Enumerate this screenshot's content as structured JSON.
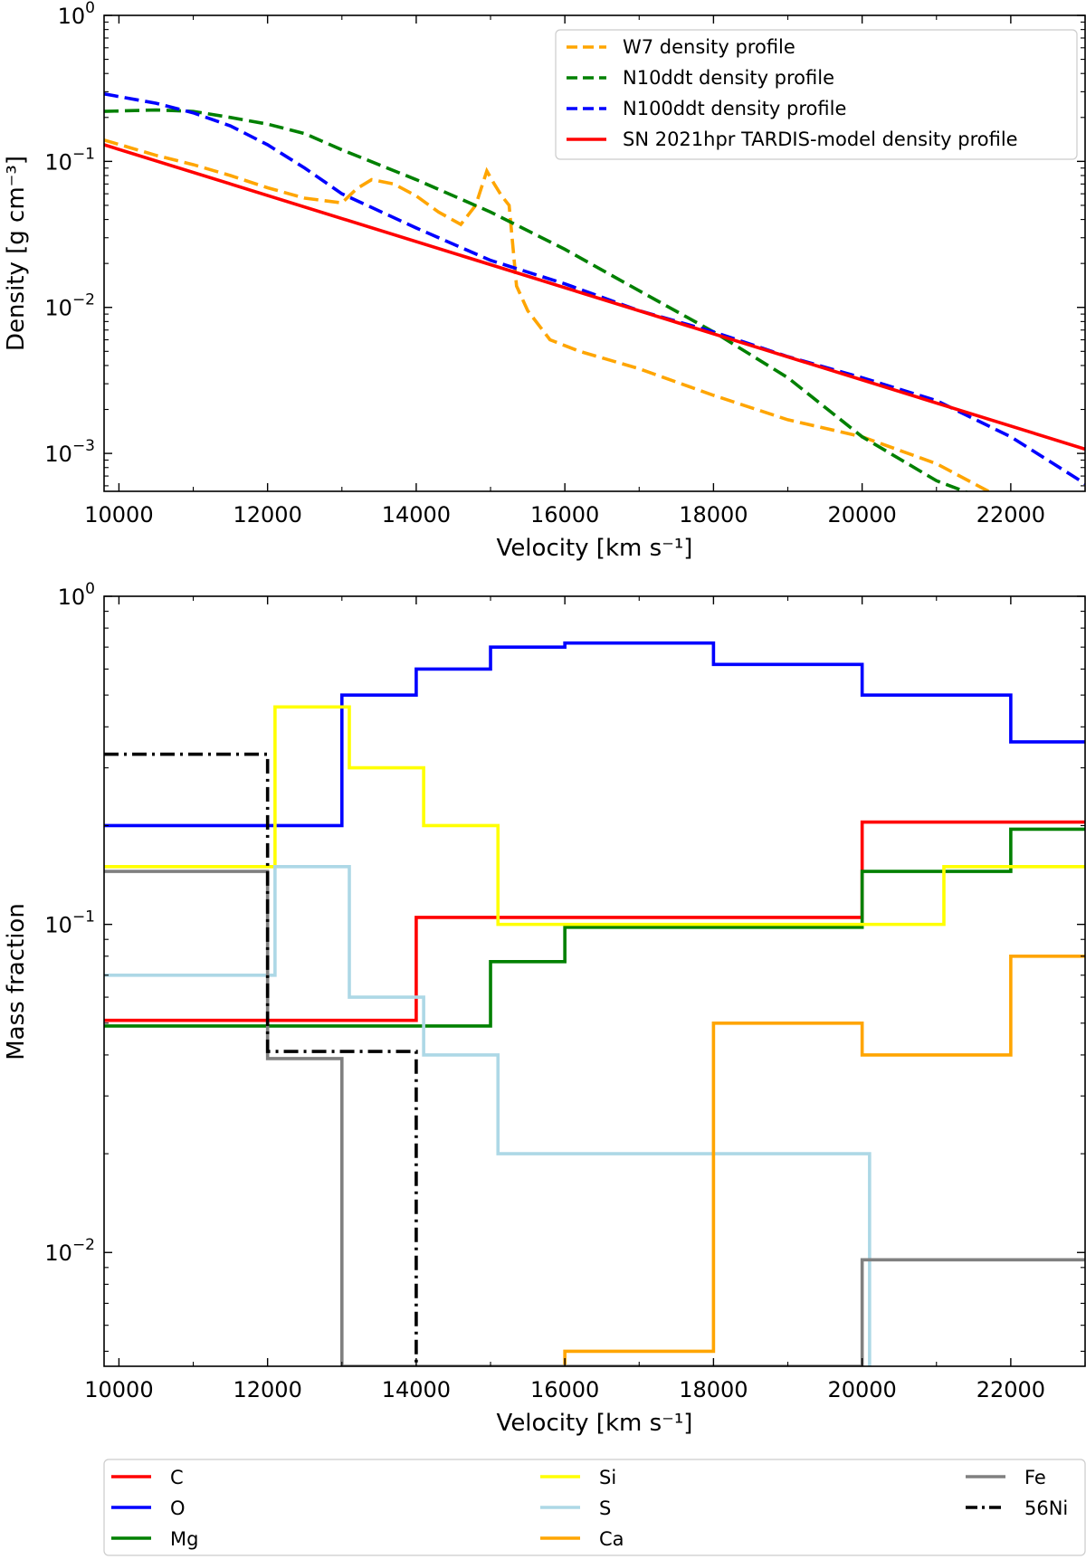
{
  "chart_data": [
    {
      "type": "line",
      "xlabel": "Velocity [km s⁻¹]",
      "ylabel": "Density [g cm⁻³]",
      "xlim": [
        9800,
        23000
      ],
      "ylim": [
        0.00055,
        1.0
      ],
      "yscale": "log",
      "grid": false,
      "legend_position": "top-right",
      "x_ticks": [
        10000,
        12000,
        14000,
        16000,
        18000,
        20000,
        22000
      ],
      "x_tick_labels": [
        "10000",
        "12000",
        "14000",
        "16000",
        "18000",
        "20000",
        "22000"
      ],
      "y_ticks": [
        0.001,
        0.01,
        0.1,
        1
      ],
      "y_tick_labels": [
        {
          "base": "10",
          "exp": "−3"
        },
        {
          "base": "10",
          "exp": "−2"
        },
        {
          "base": "10",
          "exp": "−1"
        },
        {
          "base": "10",
          "exp": "0"
        }
      ],
      "series": [
        {
          "name": "W7 density profile",
          "color": "#FFA500",
          "style": "dashed",
          "x": [
            9800,
            10500,
            11000,
            11500,
            12000,
            12500,
            13000,
            13200,
            13400,
            13700,
            14000,
            14300,
            14600,
            14800,
            14950,
            15050,
            15150,
            15250,
            15350,
            15500,
            15800,
            16200,
            17000,
            18000,
            19000,
            20000,
            21000,
            21700
          ],
          "y": [
            0.14,
            0.11,
            0.095,
            0.08,
            0.066,
            0.056,
            0.052,
            0.065,
            0.075,
            0.07,
            0.058,
            0.045,
            0.037,
            0.05,
            0.086,
            0.07,
            0.058,
            0.05,
            0.014,
            0.0095,
            0.006,
            0.005,
            0.0038,
            0.0025,
            0.0017,
            0.0013,
            0.00085,
            0.00055
          ]
        },
        {
          "name": "N10ddt density profile",
          "color": "#008000",
          "style": "dashed",
          "x": [
            9800,
            10500,
            11000,
            11500,
            12000,
            12500,
            13000,
            14000,
            15000,
            16000,
            17000,
            18000,
            19000,
            20000,
            21000,
            21500
          ],
          "y": [
            0.22,
            0.225,
            0.22,
            0.2,
            0.18,
            0.155,
            0.12,
            0.075,
            0.045,
            0.025,
            0.013,
            0.0068,
            0.0033,
            0.0013,
            0.00065,
            0.00052
          ]
        },
        {
          "name": "N100ddt density profile",
          "color": "#0000FF",
          "style": "dashed",
          "x": [
            9800,
            10500,
            11000,
            11500,
            12000,
            12500,
            13000,
            14000,
            15000,
            16000,
            17000,
            18000,
            19000,
            20000,
            21000,
            22000,
            23000
          ],
          "y": [
            0.29,
            0.25,
            0.215,
            0.175,
            0.13,
            0.09,
            0.06,
            0.035,
            0.021,
            0.0145,
            0.0095,
            0.0068,
            0.0046,
            0.0033,
            0.0023,
            0.0013,
            0.00062
          ]
        },
        {
          "name": "SN 2021hpr TARDIS-model density profile",
          "color": "#FF0000",
          "style": "solid",
          "x": [
            9800,
            23000
          ],
          "y": [
            0.13,
            0.00107
          ]
        }
      ]
    },
    {
      "type": "line",
      "xlabel": "Velocity [km s⁻¹]",
      "ylabel": "Mass fraction",
      "xlim": [
        9800,
        23000
      ],
      "ylim": [
        0.0045,
        1.0
      ],
      "yscale": "log",
      "grid": false,
      "legend_position": "bottom",
      "x_ticks": [
        10000,
        12000,
        14000,
        16000,
        18000,
        20000,
        22000
      ],
      "x_tick_labels": [
        "10000",
        "12000",
        "14000",
        "16000",
        "18000",
        "20000",
        "22000"
      ],
      "y_ticks": [
        0.01,
        0.1,
        1
      ],
      "y_tick_labels": [
        {
          "base": "10",
          "exp": "−2"
        },
        {
          "base": "10",
          "exp": "−1"
        },
        {
          "base": "10",
          "exp": "0"
        }
      ],
      "series": [
        {
          "name": "C",
          "color": "#FF0000",
          "style": "solid",
          "x": [
            9800,
            14000,
            14000,
            20000,
            20000,
            23000
          ],
          "y": [
            0.051,
            0.051,
            0.105,
            0.105,
            0.205,
            0.205
          ]
        },
        {
          "name": "O",
          "color": "#0000FF",
          "style": "solid",
          "x": [
            9800,
            13000,
            13000,
            14000,
            14000,
            15000,
            15000,
            16000,
            16000,
            18000,
            18000,
            20000,
            20000,
            22000,
            22000,
            23000
          ],
          "y": [
            0.2,
            0.2,
            0.5,
            0.5,
            0.6,
            0.6,
            0.7,
            0.7,
            0.72,
            0.72,
            0.62,
            0.62,
            0.5,
            0.5,
            0.36,
            0.36
          ]
        },
        {
          "name": "Mg",
          "color": "#008000",
          "style": "solid",
          "x": [
            9800,
            15000,
            15000,
            16000,
            16000,
            20000,
            20000,
            22000,
            22000,
            23000
          ],
          "y": [
            0.049,
            0.049,
            0.077,
            0.077,
            0.098,
            0.098,
            0.145,
            0.145,
            0.195,
            0.195
          ]
        },
        {
          "name": "Si",
          "color": "#FFFF00",
          "style": "solid",
          "x": [
            9800,
            12100,
            12100,
            13100,
            13100,
            14100,
            14100,
            15100,
            15100,
            21100,
            21100,
            23000
          ],
          "y": [
            0.15,
            0.15,
            0.46,
            0.46,
            0.3,
            0.3,
            0.2,
            0.2,
            0.1,
            0.1,
            0.15,
            0.15
          ]
        },
        {
          "name": "S",
          "color": "#ADD8E6",
          "style": "solid",
          "x": [
            9800,
            12100,
            12100,
            13100,
            13100,
            14100,
            14100,
            15100,
            15100,
            20100,
            20100
          ],
          "y": [
            0.07,
            0.07,
            0.15,
            0.15,
            0.06,
            0.06,
            0.04,
            0.04,
            0.02,
            0.02,
            0.0045
          ]
        },
        {
          "name": "Ca",
          "color": "#FFA500",
          "style": "solid",
          "x": [
            16000,
            16000,
            18000,
            18000,
            20000,
            20000,
            22000,
            22000,
            23000
          ],
          "y": [
            0.0045,
            0.005,
            0.005,
            0.05,
            0.05,
            0.04,
            0.04,
            0.08,
            0.08
          ]
        },
        {
          "name": "Fe",
          "color": "#808080",
          "style": "solid",
          "x": [
            9800,
            12000,
            12000,
            13000,
            13000,
            20000,
            20000,
            23000
          ],
          "y": [
            0.145,
            0.145,
            0.039,
            0.039,
            0.0045,
            0.0045,
            0.0095,
            0.0095
          ]
        },
        {
          "name": "56Ni",
          "color": "#000000",
          "style": "dashdot",
          "x": [
            9800,
            12000,
            12000,
            14000,
            14000
          ],
          "y": [
            0.33,
            0.33,
            0.041,
            0.041,
            0.0045
          ]
        }
      ]
    }
  ]
}
